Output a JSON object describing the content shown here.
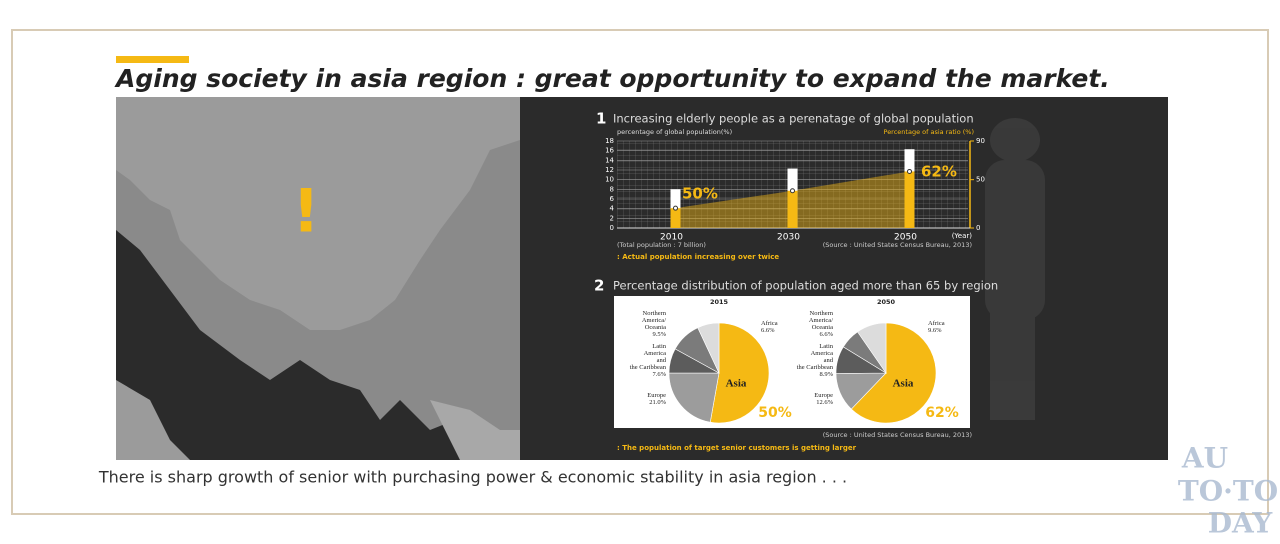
{
  "header": {
    "title": "Aging society in asia region : great opportunity to expand the market."
  },
  "map": {
    "mark": "!"
  },
  "chart_data": [
    {
      "type": "bar",
      "number": "1",
      "title": "Increasing elderly people as a perenatage of global population",
      "ylabel": "percentage of global population(%)",
      "y2label": "Percentage of asia ratio (%)",
      "xlabel": "(Year)",
      "categories": [
        "2010",
        "2030",
        "2050"
      ],
      "series": [
        {
          "color": "#ffffff",
          "values": [
            8,
            12.3,
            16.3
          ]
        },
        {
          "color": "#f5b914",
          "values": [
            4.1,
            7.7,
            11.7
          ]
        }
      ],
      "ylim": [
        0,
        18
      ],
      "yticks": [
        0,
        2,
        4,
        6,
        8,
        10,
        12,
        14,
        16,
        18
      ],
      "y2lim": [
        0,
        90
      ],
      "y2ticks": [
        0,
        50,
        90
      ],
      "grid": true,
      "annotations": [
        "50%",
        "62%"
      ],
      "notes": [
        "(Total population : 7 billion)",
        "(Source : United States Census Bureau, 2013)"
      ],
      "caption": ": Actual population increasing over twice"
    },
    {
      "type": "pie",
      "number": "2",
      "title": "Percentage distribution of population aged more than 65 by region",
      "subtitle": "2015",
      "categories": [
        "Asia",
        "Europe",
        "Latin\nAmerica\nand\nthe Caribbean",
        "Northern\nAmerica/\nOceania",
        "Africa"
      ],
      "values": [
        50,
        21,
        7.6,
        9.5,
        6.6
      ],
      "value_labels": [
        "50%",
        "21.0%",
        "7.6%",
        "9.5%",
        "6.6%"
      ],
      "colors": [
        "#f5b914",
        "#9c9c9c",
        "#5c5c5c",
        "#7b7b7b",
        "#dcdcdc"
      ]
    },
    {
      "type": "pie",
      "subtitle": "2050",
      "categories": [
        "Asia",
        "Europe",
        "Latin\nAmerica\nand\nthe Caribbean",
        "Northern\nAmerica/\nOceania",
        "Africa"
      ],
      "values": [
        62,
        12.6,
        8.9,
        6.6,
        9.6
      ],
      "value_labels": [
        "62%",
        "12.6%",
        "8.9%",
        "6.6%",
        "9.6%"
      ],
      "colors": [
        "#f5b914",
        "#9c9c9c",
        "#5c5c5c",
        "#7b7b7b",
        "#dcdcdc"
      ],
      "source": "(Source : United States Census Bureau, 2013)",
      "caption": ": The population of target senior customers is getting larger"
    }
  ],
  "footer": {
    "text": "There is sharp growth of senior with purchasing power & economic stability in asia region . . ."
  },
  "watermark": [
    "AU",
    "TO·TO",
    "DAY"
  ]
}
